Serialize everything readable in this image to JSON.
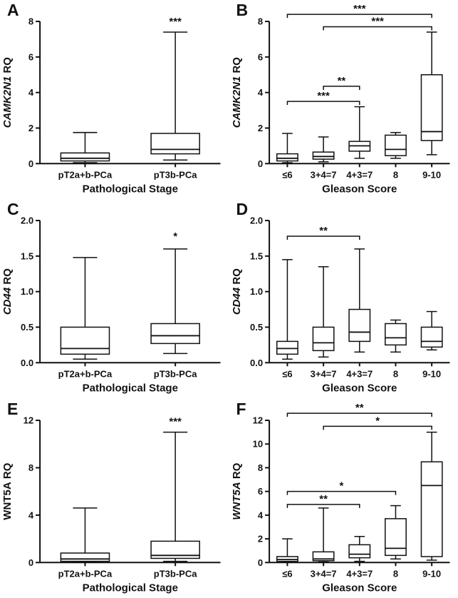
{
  "figure": {
    "background": "#ffffff",
    "line_color": "#111111",
    "box_fill": "#ffffff",
    "text_color": "#111111"
  },
  "chart_data": [
    {
      "panel": "A",
      "type": "box",
      "ylabel_gene": "CAMK2N1",
      "ylabel_suffix": " RQ",
      "ylabel_italic": true,
      "xlabel": "Pathological Stage",
      "categories": [
        "pT2a+b-PCa",
        "pT3b-PCa"
      ],
      "ylim": [
        0,
        8
      ],
      "yticks": [
        {
          "v": 0,
          "label": "0"
        },
        {
          "v": 2,
          "label": "2"
        },
        {
          "v": 4,
          "label": "4"
        },
        {
          "v": 6,
          "label": "6"
        },
        {
          "v": 8,
          "label": "8"
        }
      ],
      "boxes": [
        {
          "whislo": 0.05,
          "q1": 0.15,
          "med": 0.3,
          "q3": 0.6,
          "whishi": 1.75
        },
        {
          "whislo": 0.2,
          "q1": 0.55,
          "med": 0.8,
          "q3": 1.7,
          "whishi": 7.4
        }
      ],
      "annotations": [
        {
          "label": "***",
          "over": 1,
          "y": 7.8
        }
      ],
      "brackets": []
    },
    {
      "panel": "B",
      "type": "box",
      "ylabel_gene": "CAMK2N1",
      "ylabel_suffix": " RQ",
      "ylabel_italic": true,
      "xlabel": "Gleason Score",
      "categories": [
        "≤6",
        "3+4=7",
        "4+3=7",
        "8",
        "9-10"
      ],
      "ylim": [
        0,
        8
      ],
      "yticks": [
        {
          "v": 0,
          "label": "0"
        },
        {
          "v": 2,
          "label": "2"
        },
        {
          "v": 4,
          "label": "4"
        },
        {
          "v": 6,
          "label": "6"
        },
        {
          "v": 8,
          "label": "8"
        }
      ],
      "boxes": [
        {
          "whislo": 0.05,
          "q1": 0.15,
          "med": 0.3,
          "q3": 0.55,
          "whishi": 1.7
        },
        {
          "whislo": 0.1,
          "q1": 0.25,
          "med": 0.4,
          "q3": 0.65,
          "whishi": 1.5
        },
        {
          "whislo": 0.3,
          "q1": 0.7,
          "med": 1.0,
          "q3": 1.25,
          "whishi": 3.2
        },
        {
          "whislo": 0.3,
          "q1": 0.45,
          "med": 0.8,
          "q3": 1.6,
          "whishi": 1.75
        },
        {
          "whislo": 0.5,
          "q1": 1.3,
          "med": 1.8,
          "q3": 5.0,
          "whishi": 7.4
        }
      ],
      "annotations": [],
      "brackets": [
        {
          "label": "***",
          "x1": 0,
          "x2": 4,
          "y": 8.4
        },
        {
          "label": "***",
          "x1": 1,
          "x2": 4,
          "y": 7.7
        },
        {
          "label": "**",
          "x1": 1,
          "x2": 2,
          "y": 4.35
        },
        {
          "label": "***",
          "x1": 0,
          "x2": 2,
          "y": 3.5
        }
      ]
    },
    {
      "panel": "C",
      "type": "box",
      "ylabel_gene": "CD44",
      "ylabel_suffix": " RQ",
      "ylabel_italic": true,
      "xlabel": "Pathological Stage",
      "categories": [
        "pT2a+b-PCa",
        "pT3b-PCa"
      ],
      "ylim": [
        0,
        2
      ],
      "yticks": [
        {
          "v": 0,
          "label": "0.0"
        },
        {
          "v": 0.5,
          "label": "0.5"
        },
        {
          "v": 1.0,
          "label": "1.0"
        },
        {
          "v": 1.5,
          "label": "1.5"
        },
        {
          "v": 2.0,
          "label": "2.0"
        }
      ],
      "boxes": [
        {
          "whislo": 0.05,
          "q1": 0.12,
          "med": 0.2,
          "q3": 0.5,
          "whishi": 1.48
        },
        {
          "whislo": 0.13,
          "q1": 0.27,
          "med": 0.38,
          "q3": 0.55,
          "whishi": 1.6
        }
      ],
      "annotations": [
        {
          "label": "*",
          "over": 1,
          "y": 1.73
        }
      ],
      "brackets": []
    },
    {
      "panel": "D",
      "type": "box",
      "ylabel_gene": "CD44",
      "ylabel_suffix": " RQ",
      "ylabel_italic": true,
      "xlabel": "Gleason Score",
      "categories": [
        "≤6",
        "3+4=7",
        "4+3=7",
        "8",
        "9-10"
      ],
      "ylim": [
        0,
        2
      ],
      "yticks": [
        {
          "v": 0,
          "label": "0.0"
        },
        {
          "v": 0.5,
          "label": "0.5"
        },
        {
          "v": 1.0,
          "label": "1.0"
        },
        {
          "v": 1.5,
          "label": "1.5"
        },
        {
          "v": 2.0,
          "label": "2.0"
        }
      ],
      "boxes": [
        {
          "whislo": 0.05,
          "q1": 0.12,
          "med": 0.2,
          "q3": 0.3,
          "whishi": 1.45
        },
        {
          "whislo": 0.08,
          "q1": 0.17,
          "med": 0.28,
          "q3": 0.5,
          "whishi": 1.35
        },
        {
          "whislo": 0.15,
          "q1": 0.3,
          "med": 0.43,
          "q3": 0.75,
          "whishi": 1.6
        },
        {
          "whislo": 0.15,
          "q1": 0.25,
          "med": 0.35,
          "q3": 0.55,
          "whishi": 0.6
        },
        {
          "whislo": 0.18,
          "q1": 0.22,
          "med": 0.3,
          "q3": 0.5,
          "whishi": 0.72
        }
      ],
      "annotations": [],
      "brackets": [
        {
          "label": "**",
          "x1": 0,
          "x2": 2,
          "y": 1.78
        }
      ]
    },
    {
      "panel": "E",
      "type": "box",
      "ylabel_gene": "WNT5A",
      "ylabel_suffix": " RQ",
      "ylabel_italic": false,
      "xlabel": "Pathological Stage",
      "categories": [
        "pT2a+b-PCa",
        "pT3b-PCa"
      ],
      "ylim": [
        0,
        12
      ],
      "yticks": [
        {
          "v": 0,
          "label": "0"
        },
        {
          "v": 4,
          "label": "4"
        },
        {
          "v": 8,
          "label": "8"
        },
        {
          "v": 12,
          "label": "12"
        }
      ],
      "boxes": [
        {
          "whislo": 0.05,
          "q1": 0.1,
          "med": 0.3,
          "q3": 0.8,
          "whishi": 4.6
        },
        {
          "whislo": 0.1,
          "q1": 0.35,
          "med": 0.6,
          "q3": 1.8,
          "whishi": 11.0
        }
      ],
      "annotations": [
        {
          "label": "***",
          "over": 1,
          "y": 11.6
        }
      ],
      "brackets": []
    },
    {
      "panel": "F",
      "type": "box",
      "ylabel_gene": "WNT5A",
      "ylabel_suffix": " RQ",
      "ylabel_italic": true,
      "xlabel": "Gleason Score",
      "categories": [
        "≤6",
        "3+4=7",
        "4+3=7",
        "8",
        "9-10"
      ],
      "ylim": [
        0,
        12
      ],
      "yticks": [
        {
          "v": 0,
          "label": "0"
        },
        {
          "v": 2,
          "label": "2"
        },
        {
          "v": 4,
          "label": "4"
        },
        {
          "v": 6,
          "label": "6"
        },
        {
          "v": 8,
          "label": "8"
        },
        {
          "v": 10,
          "label": "10"
        },
        {
          "v": 12,
          "label": "12"
        }
      ],
      "boxes": [
        {
          "whislo": 0.03,
          "q1": 0.1,
          "med": 0.25,
          "q3": 0.5,
          "whishi": 2.0
        },
        {
          "whislo": 0.05,
          "q1": 0.15,
          "med": 0.3,
          "q3": 0.9,
          "whishi": 4.6
        },
        {
          "whislo": 0.1,
          "q1": 0.4,
          "med": 0.7,
          "q3": 1.5,
          "whishi": 2.2
        },
        {
          "whislo": 0.3,
          "q1": 0.6,
          "med": 1.2,
          "q3": 3.7,
          "whishi": 4.8
        },
        {
          "whislo": 0.2,
          "q1": 0.5,
          "med": 6.5,
          "q3": 8.5,
          "whishi": 11.0
        }
      ],
      "annotations": [],
      "brackets": [
        {
          "label": "**",
          "x1": 0,
          "x2": 4,
          "y": 12.6
        },
        {
          "label": "*",
          "x1": 1,
          "x2": 4,
          "y": 11.5
        },
        {
          "label": "*",
          "x1": 0,
          "x2": 3,
          "y": 6.0
        },
        {
          "label": "**",
          "x1": 0,
          "x2": 2,
          "y": 4.9
        }
      ]
    }
  ]
}
